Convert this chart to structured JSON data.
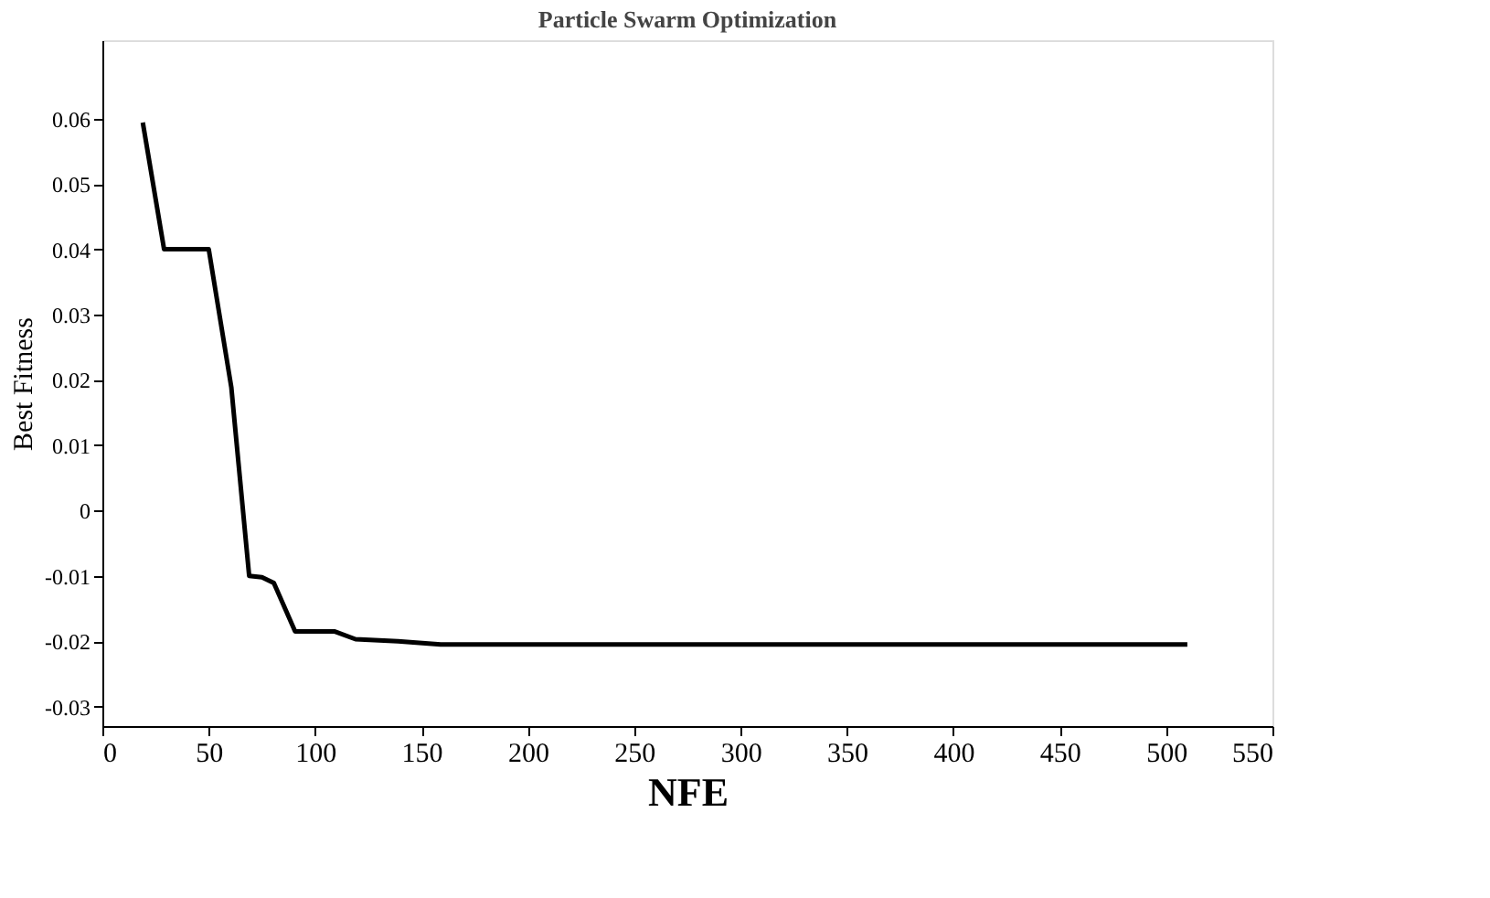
{
  "chart_data": {
    "type": "line",
    "title": "Particle Swarm Optimization",
    "xlabel": "NFE",
    "ylabel": "Best Fitness",
    "x": [
      19,
      29,
      50,
      60.6,
      69,
      75,
      80.6,
      90.6,
      109,
      119,
      139,
      159,
      510
    ],
    "series": [
      {
        "color": "#000000",
        "values": [
          0.0594,
          0.04,
          0.04,
          0.0189,
          -0.01,
          -0.0102,
          -0.0111,
          -0.0185,
          -0.0185,
          -0.0197,
          -0.02,
          -0.0205,
          -0.0205
        ]
      }
    ],
    "xlim": [
      0,
      550
    ],
    "xticks": [
      0,
      50,
      100,
      150,
      200,
      250,
      300,
      350,
      400,
      450,
      500,
      550
    ],
    "ylim": [
      -0.033,
      0.072
    ],
    "yticks": [
      -0.03,
      -0.02,
      -0.01,
      0,
      0.01,
      0.02,
      0.03,
      0.04,
      0.05,
      0.06
    ],
    "grid": false,
    "legend": false,
    "marker": "none",
    "line_style": "solid"
  }
}
